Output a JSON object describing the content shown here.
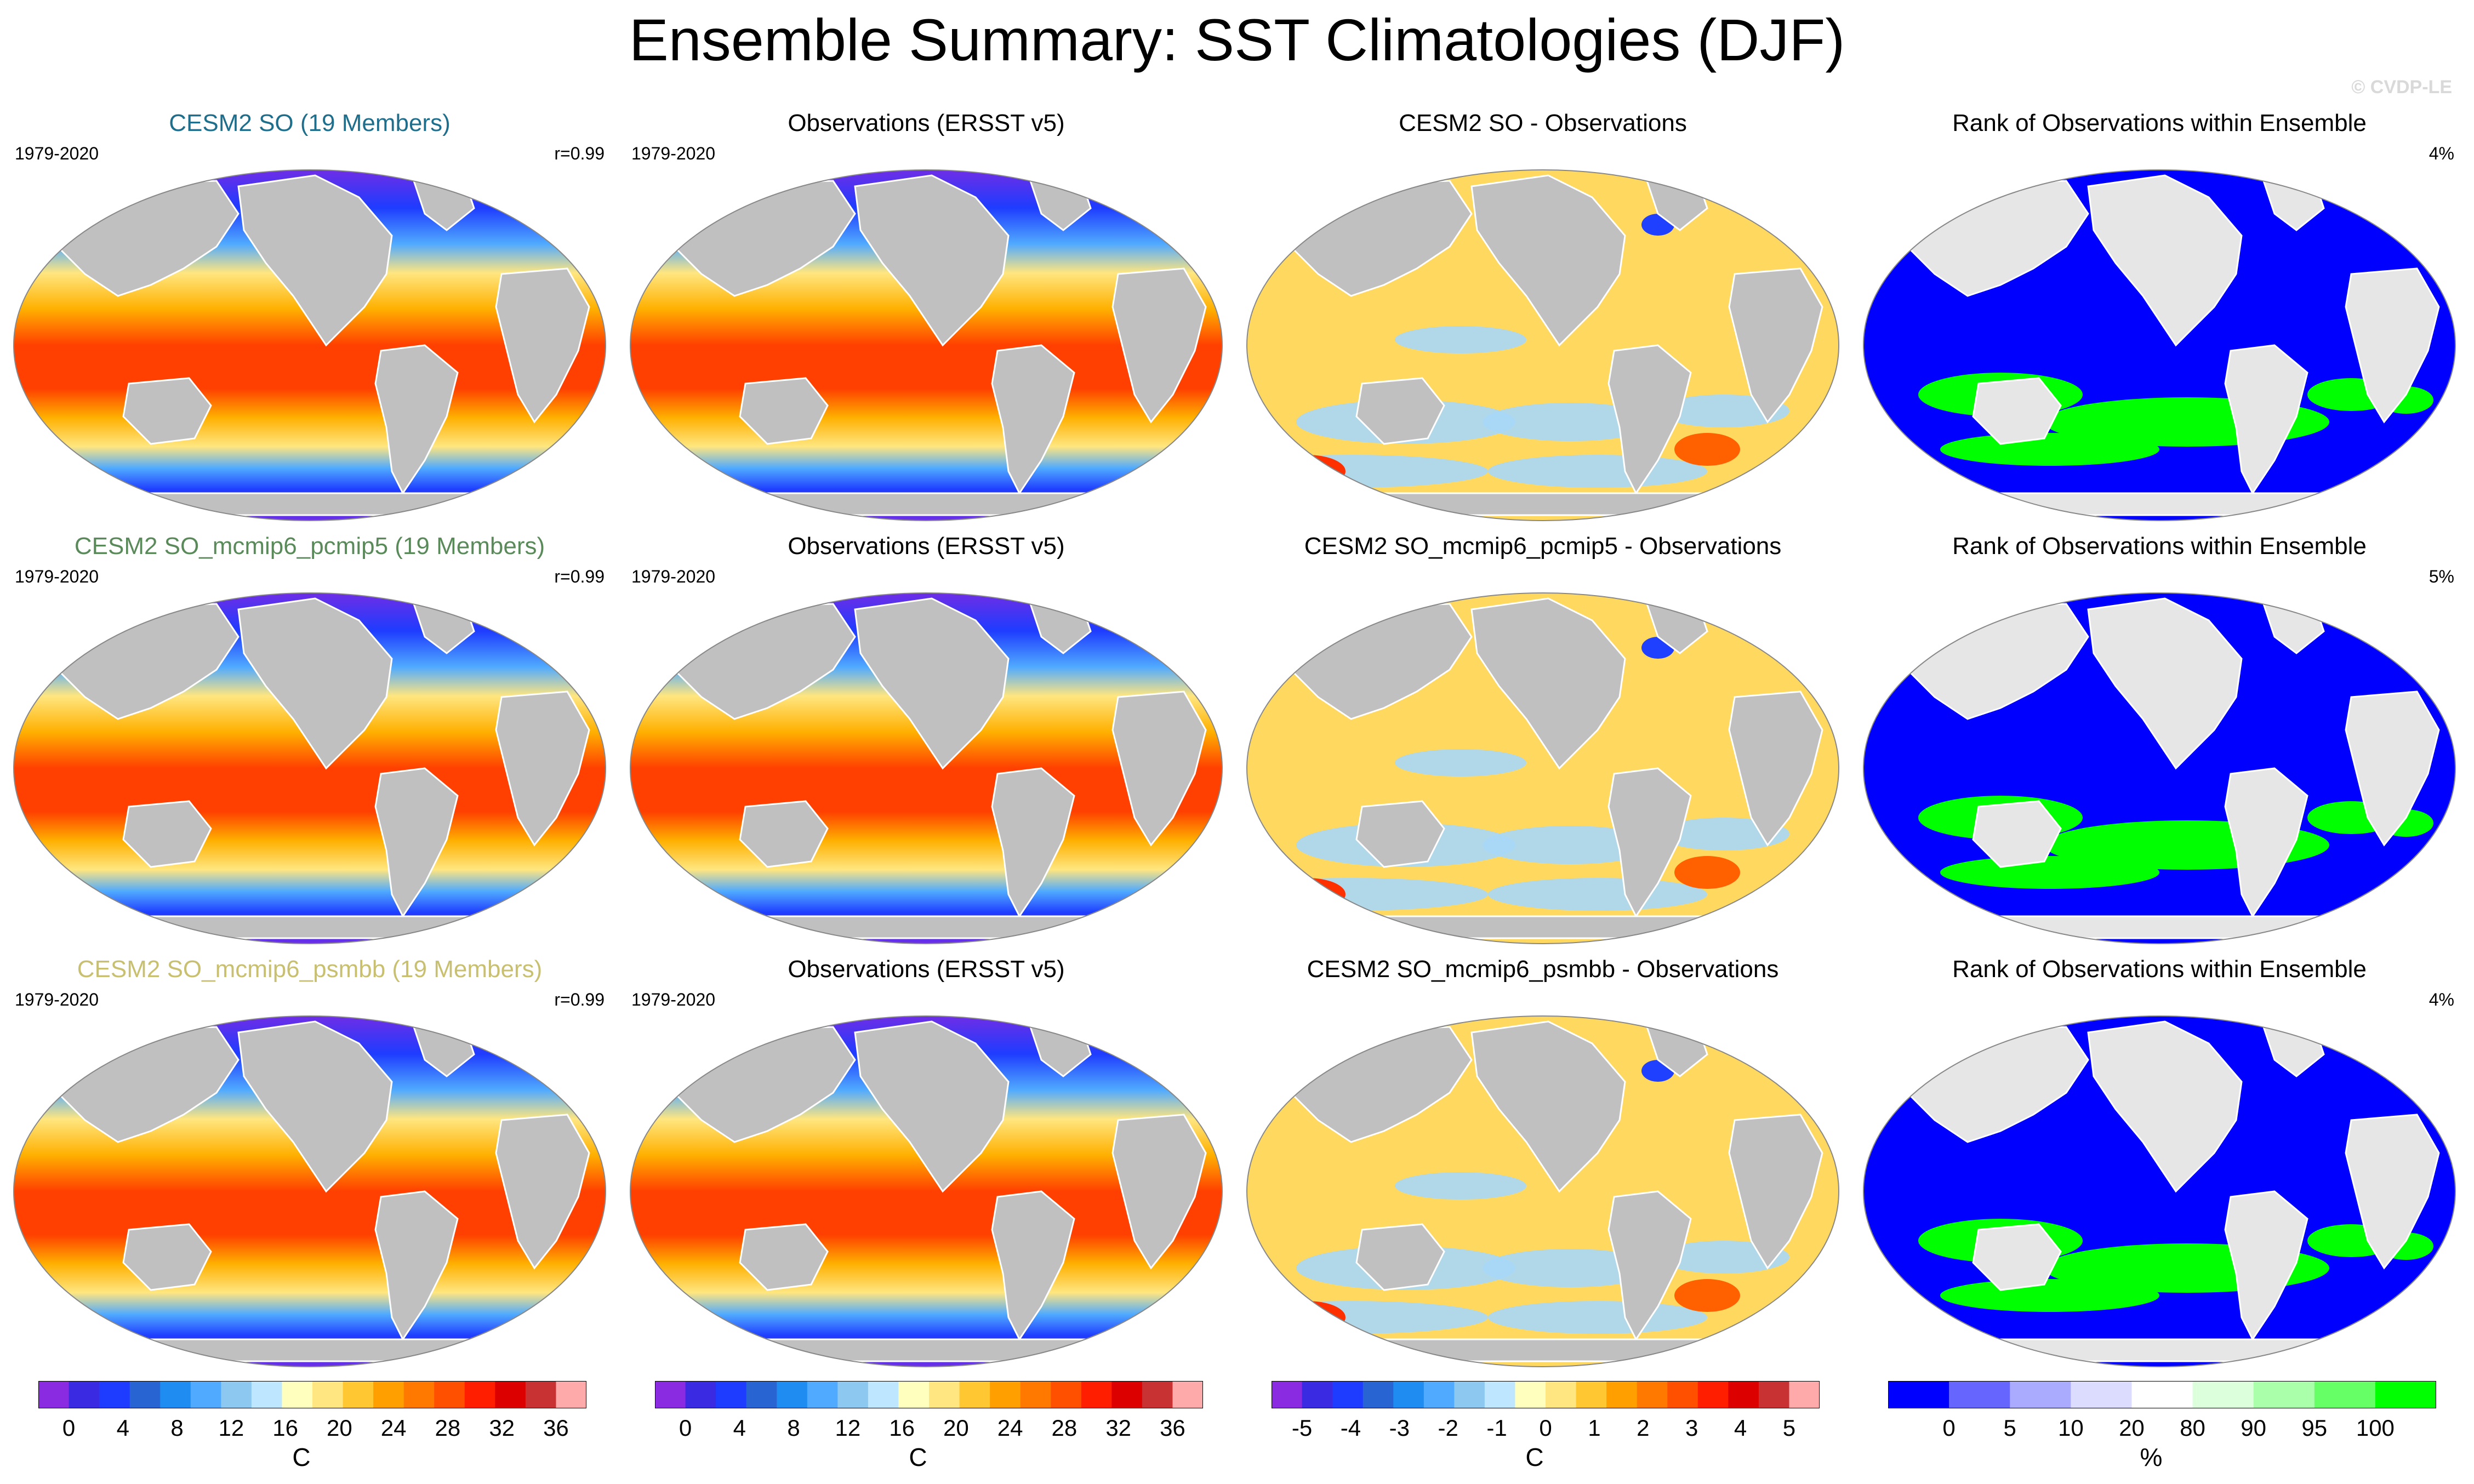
{
  "title": "Ensemble Summary: SST Climatologies (DJF)",
  "credit": "© CVDP-LE",
  "rows": [
    {
      "model": {
        "title": "CESM2 SO (19 Members)",
        "title_color": "#1e6e8c",
        "period": "1979-2020",
        "corr": "r=0.99"
      },
      "obs": {
        "title": "Observations (ERSST v5)",
        "period": "1979-2020"
      },
      "diff": {
        "title": "CESM2 SO - Observations"
      },
      "rank": {
        "title": "Rank of Observations within Ensemble",
        "pct": "4%"
      }
    },
    {
      "model": {
        "title": "CESM2 SO_mcmip6_pcmip5 (19 Members)",
        "title_color": "#5a8a5a",
        "period": "1979-2020",
        "corr": "r=0.99"
      },
      "obs": {
        "title": "Observations (ERSST v5)",
        "period": "1979-2020"
      },
      "diff": {
        "title": "CESM2 SO_mcmip6_pcmip5 - Observations"
      },
      "rank": {
        "title": "Rank of Observations within Ensemble",
        "pct": "5%"
      }
    },
    {
      "model": {
        "title": "CESM2 SO_mcmip6_psmbb (19 Members)",
        "title_color": "#c8c070",
        "period": "1979-2020",
        "corr": "r=0.99"
      },
      "obs": {
        "title": "Observations (ERSST v5)",
        "period": "1979-2020"
      },
      "diff": {
        "title": "CESM2 SO_mcmip6_psmbb - Observations"
      },
      "rank": {
        "title": "Rank of Observations within Ensemble",
        "pct": "4%"
      }
    }
  ],
  "colorbars": [
    {
      "unit": "C",
      "colors": [
        "#8a2be2",
        "#3a2be2",
        "#1e3cff",
        "#2864d2",
        "#1e8cf0",
        "#50aaff",
        "#8cc8f0",
        "#bee6ff",
        "#ffffbe",
        "#ffe680",
        "#ffc832",
        "#ffa000",
        "#ff7800",
        "#ff5000",
        "#ff1e00",
        "#dc0000",
        "#c83232",
        "#ffaaaa"
      ],
      "ticks": [
        "0",
        "4",
        "8",
        "12",
        "16",
        "20",
        "24",
        "28",
        "32",
        "36"
      ]
    },
    {
      "unit": "C",
      "colors": [
        "#8a2be2",
        "#3a2be2",
        "#1e3cff",
        "#2864d2",
        "#1e8cf0",
        "#50aaff",
        "#8cc8f0",
        "#bee6ff",
        "#ffffbe",
        "#ffe680",
        "#ffc832",
        "#ffa000",
        "#ff7800",
        "#ff5000",
        "#ff1e00",
        "#dc0000",
        "#c83232",
        "#ffaaaa"
      ],
      "ticks": [
        "0",
        "4",
        "8",
        "12",
        "16",
        "20",
        "24",
        "28",
        "32",
        "36"
      ]
    },
    {
      "unit": "C",
      "colors": [
        "#8a2be2",
        "#3a2be2",
        "#1e3cff",
        "#2864d2",
        "#1e8cf0",
        "#50aaff",
        "#8cc8f0",
        "#bee6ff",
        "#ffffbe",
        "#ffe680",
        "#ffc832",
        "#ffa000",
        "#ff7800",
        "#ff5000",
        "#ff1e00",
        "#dc0000",
        "#c83232",
        "#ffaaaa"
      ],
      "ticks": [
        "-5",
        "-4",
        "-3",
        "-2",
        "-1",
        "0",
        "1",
        "2",
        "3",
        "4",
        "5"
      ]
    },
    {
      "unit": "%",
      "colors": [
        "#0000ff",
        "#6666ff",
        "#aaaaff",
        "#dcdcff",
        "#ffffff",
        "#dcffdc",
        "#aaffaa",
        "#66ff66",
        "#00ff00"
      ],
      "ticks": [
        "0",
        "5",
        "10",
        "20",
        "80",
        "90",
        "95",
        "100"
      ]
    }
  ],
  "map_colors": {
    "land": "#c0c0c0",
    "warm": "#ff4000",
    "mid": "#ffb000",
    "cool": "#50aaff",
    "polar": "#7a2be2",
    "diff_base": "#ffd860",
    "diff_cool": "#a8d8f8",
    "rank_low": "#0000ff",
    "rank_high": "#00ff00",
    "rank_land": "#e6e6e6"
  }
}
